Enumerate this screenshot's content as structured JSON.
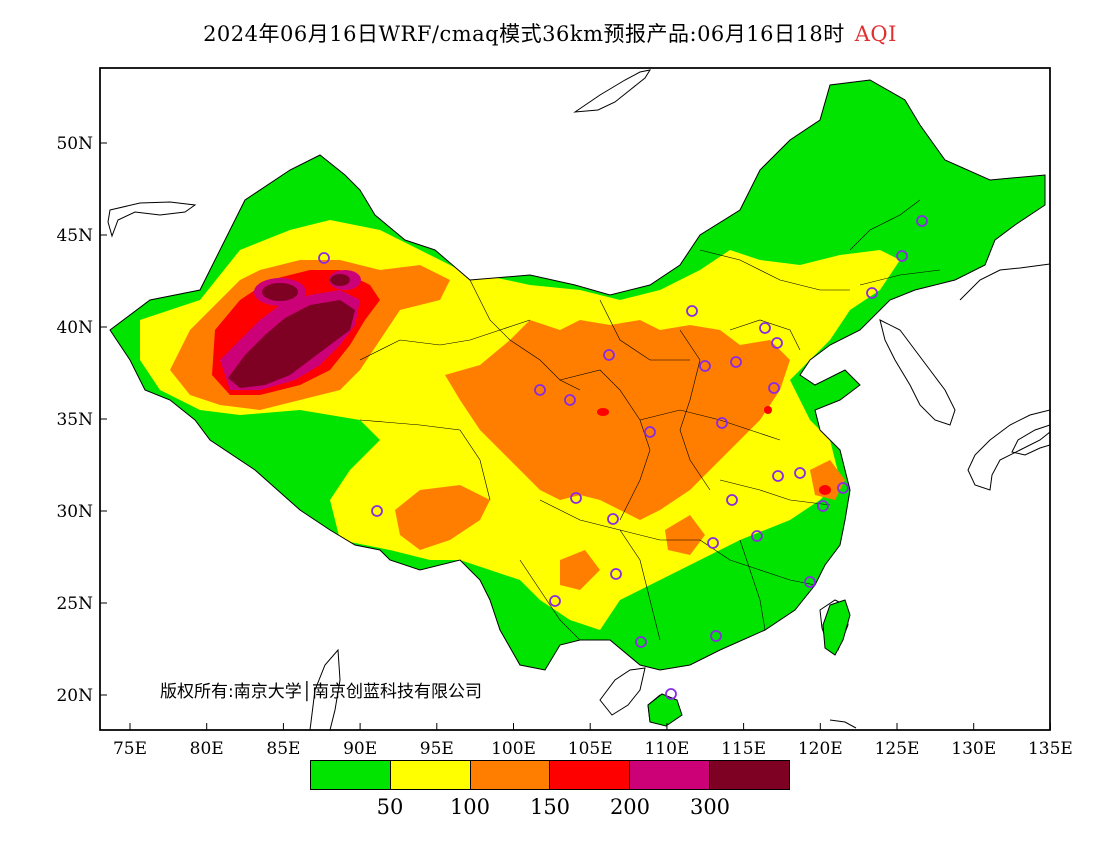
{
  "title": {
    "text": "2024年06月16日WRF/cmaq模式36km预报产品:06月16日18时",
    "variable": "AQI",
    "variable_color": "#e03030"
  },
  "copyright": "版权所有:南京大学│南京创蓝科技有限公司",
  "axes": {
    "lat_ticks": [
      "50N",
      "45N",
      "40N",
      "35N",
      "30N",
      "25N",
      "20N"
    ],
    "lon_ticks": [
      "75E",
      "80E",
      "85E",
      "90E",
      "95E",
      "100E",
      "105E",
      "110E",
      "115E",
      "120E",
      "125E",
      "130E",
      "135E"
    ],
    "lon_range": [
      73,
      135
    ],
    "lat_range": [
      18,
      54
    ]
  },
  "legend": {
    "colors": [
      "#00e400",
      "#ffff00",
      "#ff7e00",
      "#ff0000",
      "#cc0077",
      "#7e0023"
    ],
    "labels": [
      "50",
      "100",
      "150",
      "200",
      "300"
    ]
  },
  "colors": {
    "station_marker": "#8a2be2",
    "sea": "#ffffff",
    "boundary": "#000000"
  }
}
